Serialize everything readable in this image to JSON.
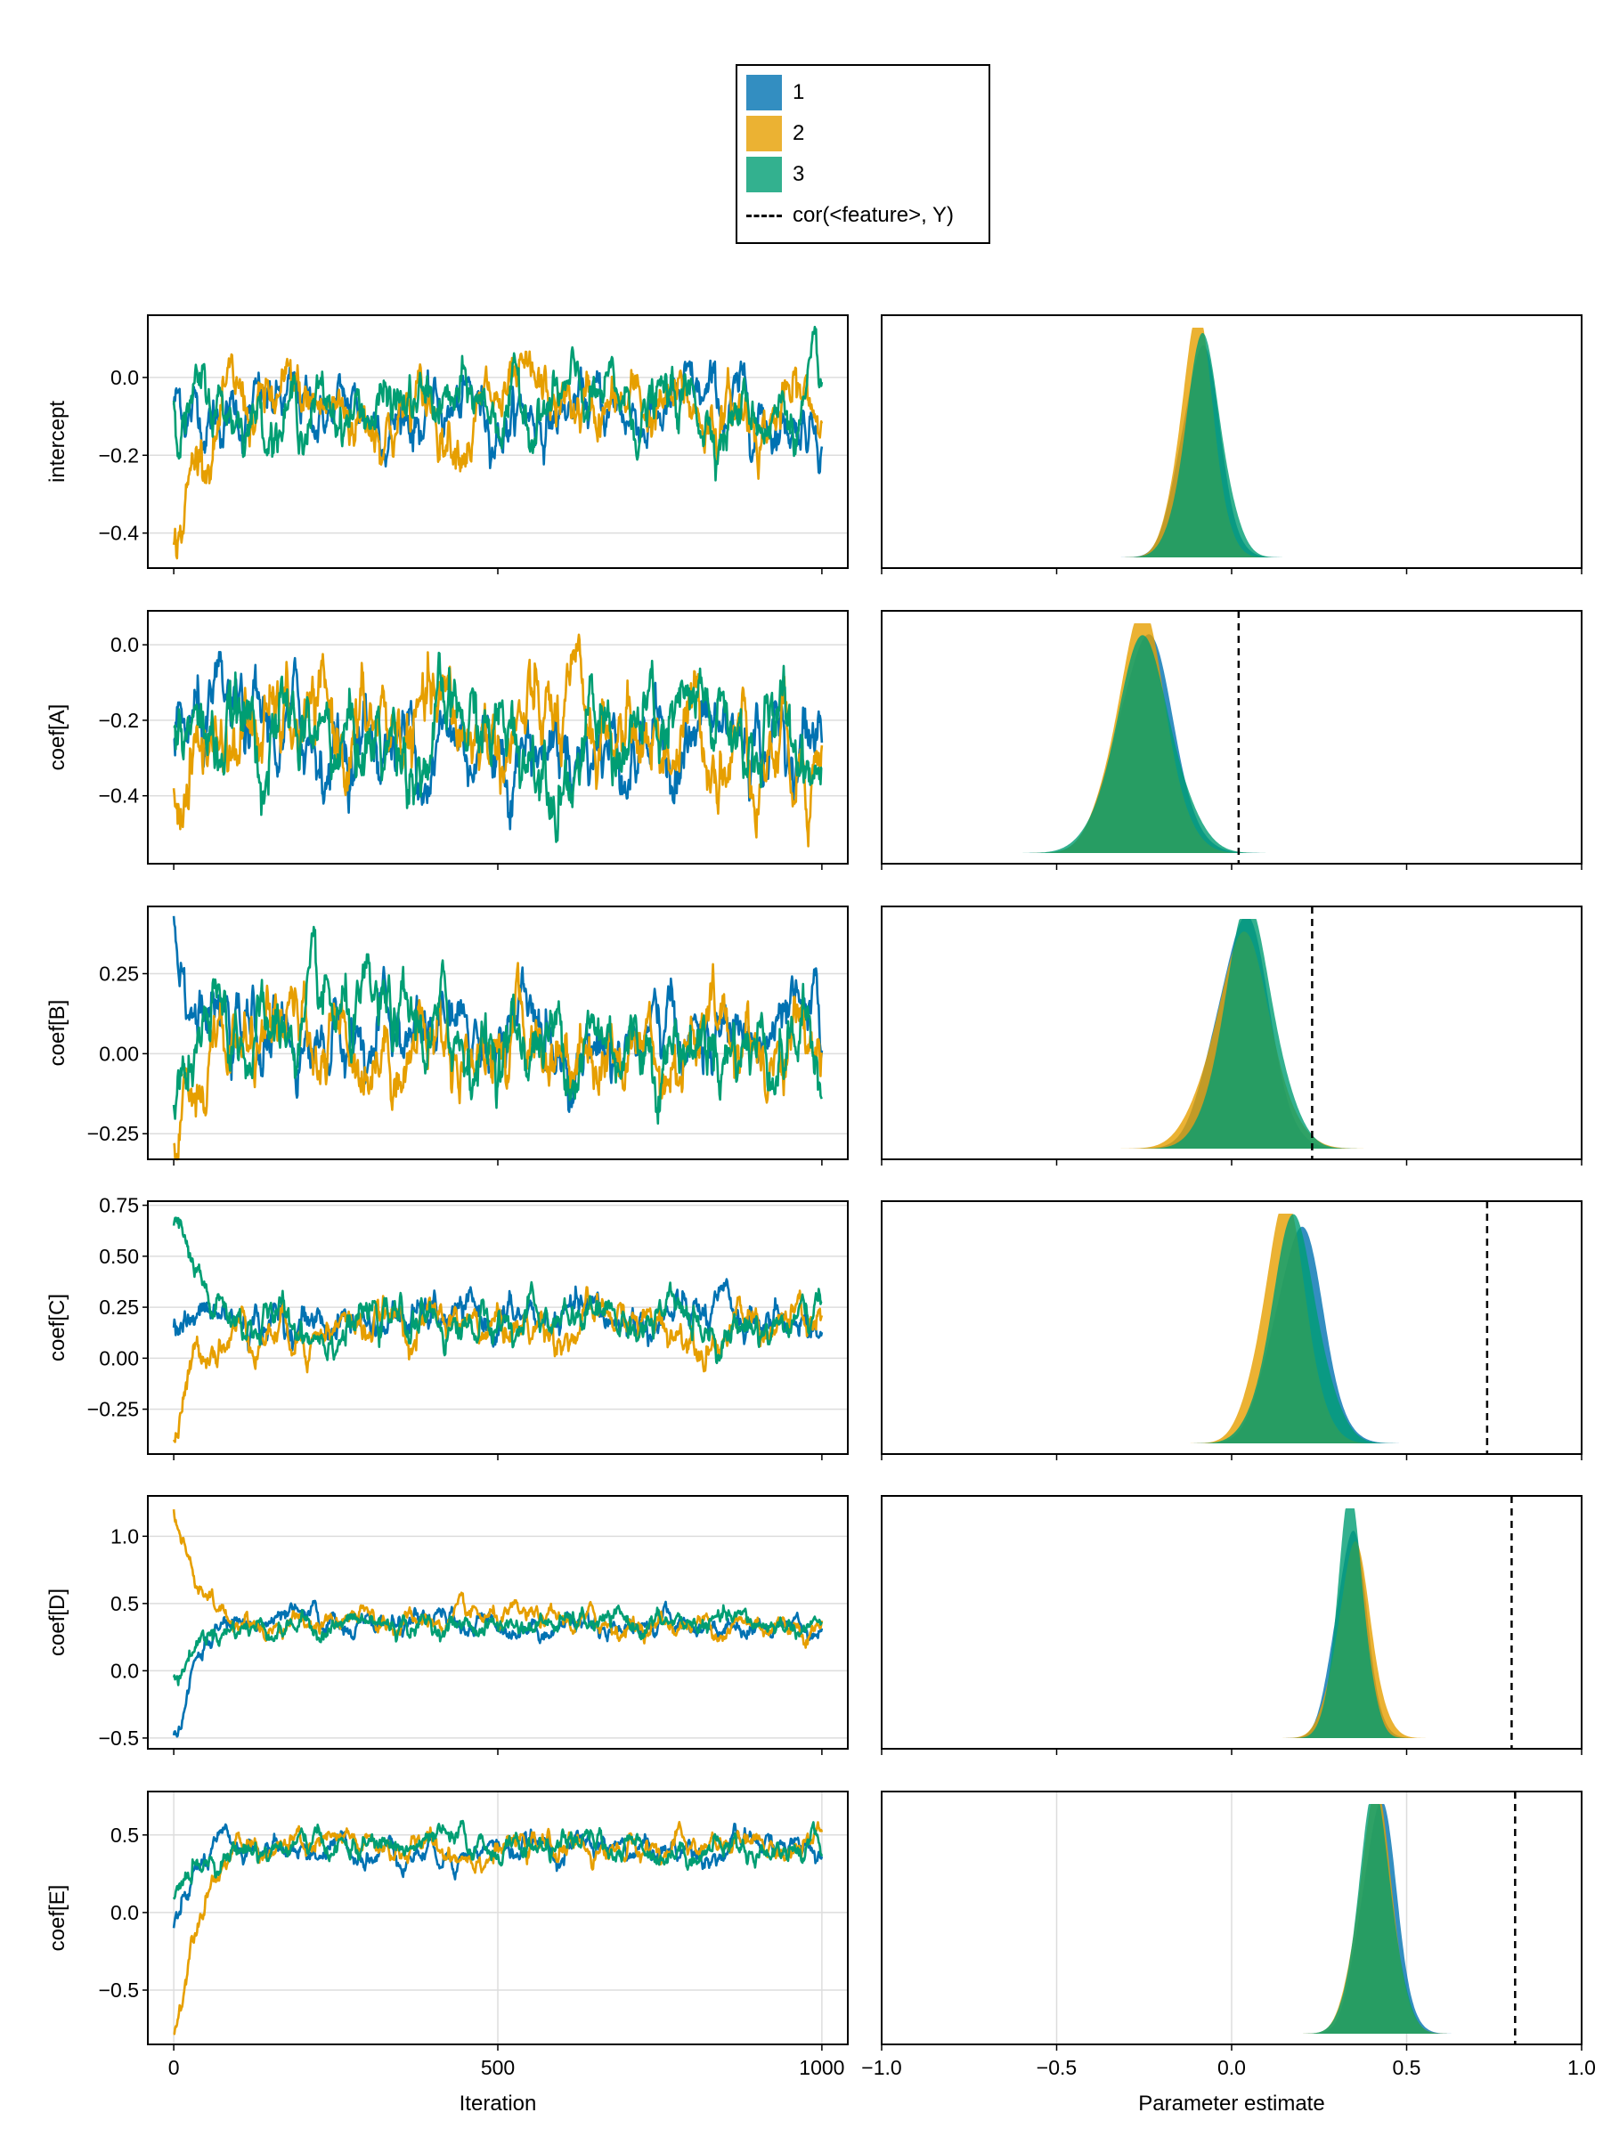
{
  "colors": {
    "chain1": "#0072b2",
    "chain2": "#e69f00",
    "chain3": "#009e73",
    "reference": "#000000",
    "grid": "#dddddd"
  },
  "legend": {
    "items": [
      {
        "label": "1",
        "color": "#0072b2"
      },
      {
        "label": "2",
        "color": "#e69f00"
      },
      {
        "label": "3",
        "color": "#009e73"
      }
    ],
    "reference_label": "cor(<feature>, Y)"
  },
  "chart_data": [
    {
      "type": "line",
      "panel": "trace",
      "xlabel": "Iteration",
      "xlim": [
        -40,
        1040
      ],
      "xticks": [
        0,
        500,
        1000
      ],
      "xtick_labels": [
        "0",
        "500",
        "1000"
      ],
      "rows": [
        {
          "ylabel": "intercept",
          "ylim": [
            -0.49,
            0.16
          ],
          "yticks": [
            -0.4,
            -0.2,
            0.0
          ],
          "ytick_labels": [
            "−0.4",
            "−0.2",
            "0.0"
          ],
          "series": [
            {
              "name": "1",
              "start": -0.07,
              "mean": -0.09,
              "sd": 0.055
            },
            {
              "name": "2",
              "start": -0.43,
              "mean": -0.09,
              "sd": 0.06
            },
            {
              "name": "3",
              "start": -0.06,
              "mean": -0.08,
              "sd": 0.055
            }
          ]
        },
        {
          "ylabel": "coef[A]",
          "ylim": [
            -0.58,
            0.09
          ],
          "yticks": [
            -0.4,
            -0.2,
            0.0
          ],
          "ytick_labels": [
            "−0.4",
            "−0.2",
            "0.0"
          ],
          "series": [
            {
              "name": "1",
              "start": -0.25,
              "mean": -0.25,
              "sd": 0.08
            },
            {
              "name": "2",
              "start": -0.38,
              "mean": -0.24,
              "sd": 0.09
            },
            {
              "name": "3",
              "start": -0.22,
              "mean": -0.25,
              "sd": 0.085
            }
          ]
        },
        {
          "ylabel": "coef[B]",
          "ylim": [
            -0.33,
            0.46
          ],
          "yticks": [
            -0.25,
            0.0,
            0.25
          ],
          "ytick_labels": [
            "−0.25",
            "0.00",
            "0.25"
          ],
          "series": [
            {
              "name": "1",
              "start": 0.43,
              "mean": 0.04,
              "sd": 0.08
            },
            {
              "name": "2",
              "start": -0.28,
              "mean": 0.04,
              "sd": 0.09
            },
            {
              "name": "3",
              "start": -0.16,
              "mean": 0.05,
              "sd": 0.09
            }
          ]
        },
        {
          "ylabel": "coef[C]",
          "ylim": [
            -0.47,
            0.77
          ],
          "yticks": [
            -0.25,
            0.0,
            0.25,
            0.5,
            0.75
          ],
          "ytick_labels": [
            "−0.25",
            "0.00",
            "0.25",
            "0.50",
            "0.75"
          ],
          "series": [
            {
              "name": "1",
              "start": 0.15,
              "mean": 0.18,
              "sd": 0.07
            },
            {
              "name": "2",
              "start": -0.4,
              "mean": 0.16,
              "sd": 0.07
            },
            {
              "name": "3",
              "start": 0.65,
              "mean": 0.17,
              "sd": 0.07
            }
          ]
        },
        {
          "ylabel": "coef[D]",
          "ylim": [
            -0.58,
            1.3
          ],
          "yticks": [
            -0.5,
            0.0,
            0.5,
            1.0
          ],
          "ytick_labels": [
            "−0.5",
            "0.0",
            "0.5",
            "1.0"
          ],
          "series": [
            {
              "name": "1",
              "start": -0.48,
              "mean": 0.35,
              "sd": 0.06
            },
            {
              "name": "2",
              "start": 1.2,
              "mean": 0.35,
              "sd": 0.06
            },
            {
              "name": "3",
              "start": -0.05,
              "mean": 0.34,
              "sd": 0.06
            }
          ]
        },
        {
          "ylabel": "coef[E]",
          "ylim": [
            -0.85,
            0.78
          ],
          "yticks": [
            -0.5,
            0.0,
            0.5
          ],
          "ytick_labels": [
            "−0.5",
            "0.0",
            "0.5"
          ],
          "series": [
            {
              "name": "1",
              "start": -0.1,
              "mean": 0.41,
              "sd": 0.06
            },
            {
              "name": "2",
              "start": -0.78,
              "mean": 0.41,
              "sd": 0.06
            },
            {
              "name": "3",
              "start": 0.1,
              "mean": 0.42,
              "sd": 0.06
            }
          ]
        }
      ]
    },
    {
      "type": "area",
      "panel": "density",
      "xlabel": "Parameter estimate",
      "xlim": [
        -1.0,
        1.0
      ],
      "xticks": [
        -1.0,
        -0.5,
        0.0,
        0.5,
        1.0
      ],
      "xtick_labels": [
        "−1.0",
        "−0.5",
        "0.0",
        "0.5",
        "1.0"
      ],
      "rows": [
        {
          "name": "intercept",
          "reference": null,
          "series": [
            {
              "name": "1",
              "mean": -0.09,
              "sd": 0.055
            },
            {
              "name": "2",
              "mean": -0.1,
              "sd": 0.05
            },
            {
              "name": "3",
              "mean": -0.08,
              "sd": 0.055
            }
          ]
        },
        {
          "name": "coef[A]",
          "reference": 0.02,
          "series": [
            {
              "name": "1",
              "mean": -0.25,
              "sd": 0.08
            },
            {
              "name": "2",
              "mean": -0.26,
              "sd": 0.075
            },
            {
              "name": "3",
              "mean": -0.25,
              "sd": 0.085
            }
          ]
        },
        {
          "name": "coef[B]",
          "reference": 0.23,
          "series": [
            {
              "name": "1",
              "mean": 0.03,
              "sd": 0.075
            },
            {
              "name": "2",
              "mean": 0.03,
              "sd": 0.085
            },
            {
              "name": "3",
              "mean": 0.05,
              "sd": 0.075
            }
          ]
        },
        {
          "name": "coef[C]",
          "reference": 0.73,
          "series": [
            {
              "name": "1",
              "mean": 0.19,
              "sd": 0.07
            },
            {
              "name": "2",
              "mean": 0.15,
              "sd": 0.065
            },
            {
              "name": "3",
              "mean": 0.18,
              "sd": 0.07
            }
          ]
        },
        {
          "name": "coef[D]",
          "reference": 0.8,
          "series": [
            {
              "name": "1",
              "mean": 0.34,
              "sd": 0.045
            },
            {
              "name": "2",
              "mean": 0.35,
              "sd": 0.05
            },
            {
              "name": "3",
              "mean": 0.34,
              "sd": 0.04
            }
          ]
        },
        {
          "name": "coef[E]",
          "reference": 0.81,
          "series": [
            {
              "name": "1",
              "mean": 0.42,
              "sd": 0.05
            },
            {
              "name": "2",
              "mean": 0.41,
              "sd": 0.05
            },
            {
              "name": "3",
              "mean": 0.41,
              "sd": 0.05
            }
          ]
        }
      ]
    }
  ]
}
